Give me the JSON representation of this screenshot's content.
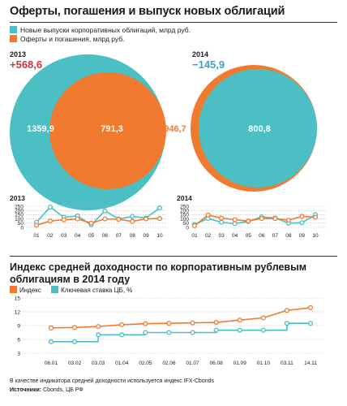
{
  "title": "Оферты, погашения и выпуск новых облигаций",
  "legend": [
    {
      "label": "Новые выпуски корпоративных облигаций, млрд руб.",
      "color": "#4bbfc3"
    },
    {
      "label": "Оферты и погашения, млрд руб.",
      "color": "#f07a2e"
    }
  ],
  "colors": {
    "teal": "#4bbfc3",
    "orange": "#f07a2e",
    "red": "#c8383c",
    "blue": "#3d9fd0",
    "grid": "#b7b7b7"
  },
  "circles": {
    "y2013": {
      "year": "2013",
      "diff": "+568,6",
      "new_issues": "1359,9",
      "offers": "791,3"
    },
    "y2014": {
      "year": "2014",
      "diff": "−145,9",
      "new_issues": "800,8",
      "offers": "946,7"
    }
  },
  "chart_data": [
    {
      "type": "line",
      "title": "2013",
      "categories": [
        "01",
        "02",
        "03",
        "04",
        "05",
        "06",
        "07",
        "08",
        "09",
        "10"
      ],
      "ylim": [
        0,
        250
      ],
      "yticks": [
        "0",
        "50",
        "100",
        "150",
        "200",
        "250"
      ],
      "series": [
        {
          "color": "#4bbfc3",
          "values": [
            60,
            240,
            120,
            135,
            30,
            195,
            100,
            130,
            110,
            230
          ]
        },
        {
          "color": "#f07a2e",
          "values": [
            25,
            75,
            90,
            100,
            50,
            100,
            95,
            70,
            100,
            105
          ]
        }
      ]
    },
    {
      "type": "line",
      "title": "2014",
      "categories": [
        "01",
        "02",
        "03",
        "04",
        "05",
        "06",
        "07",
        "08",
        "09",
        "10"
      ],
      "ylim": [
        0,
        250
      ],
      "yticks": [
        "0",
        "50",
        "100",
        "150",
        "200",
        "250"
      ],
      "series": [
        {
          "color": "#4bbfc3",
          "values": [
            35,
            105,
            60,
            45,
            70,
            125,
            110,
            50,
            55,
            150
          ]
        },
        {
          "color": "#f07a2e",
          "values": [
            20,
            145,
            110,
            90,
            75,
            105,
            105,
            85,
            130,
            120
          ]
        }
      ]
    },
    {
      "type": "line",
      "title": "Индекс средней доходности по корпоративным рублевым облигациям в 2014 году",
      "legend": [
        "Индекс",
        "Ключевая ставка ЦБ, %"
      ],
      "categories": [
        "06.01",
        "03.02",
        "03.03",
        "01.04",
        "02.05",
        "02.06",
        "01.07",
        "06.08",
        "01.09",
        "01.10",
        "03.11",
        "14.11"
      ],
      "ylim": [
        3,
        15
      ],
      "yticks": [
        "3",
        "6",
        "9",
        "12",
        "15"
      ],
      "series": [
        {
          "name": "Индекс",
          "color": "#f07a2e",
          "values": [
            8.5,
            8.6,
            8.8,
            9.2,
            9.4,
            9.5,
            9.6,
            9.7,
            10.2,
            10.7,
            12.3,
            12.9
          ]
        },
        {
          "name": "Ключевая ставка ЦБ, %",
          "color": "#4bbfc3",
          "values": [
            5.5,
            5.5,
            7.0,
            7.0,
            7.5,
            7.5,
            7.5,
            8.0,
            8.0,
            8.0,
            9.5,
            9.5
          ]
        }
      ]
    }
  ],
  "footnote": "В качестве индикатора средней доходности используется индекс IFX-Cbonds",
  "sources_label": "Источники:",
  "sources": "Cbonds, ЦБ РФ"
}
